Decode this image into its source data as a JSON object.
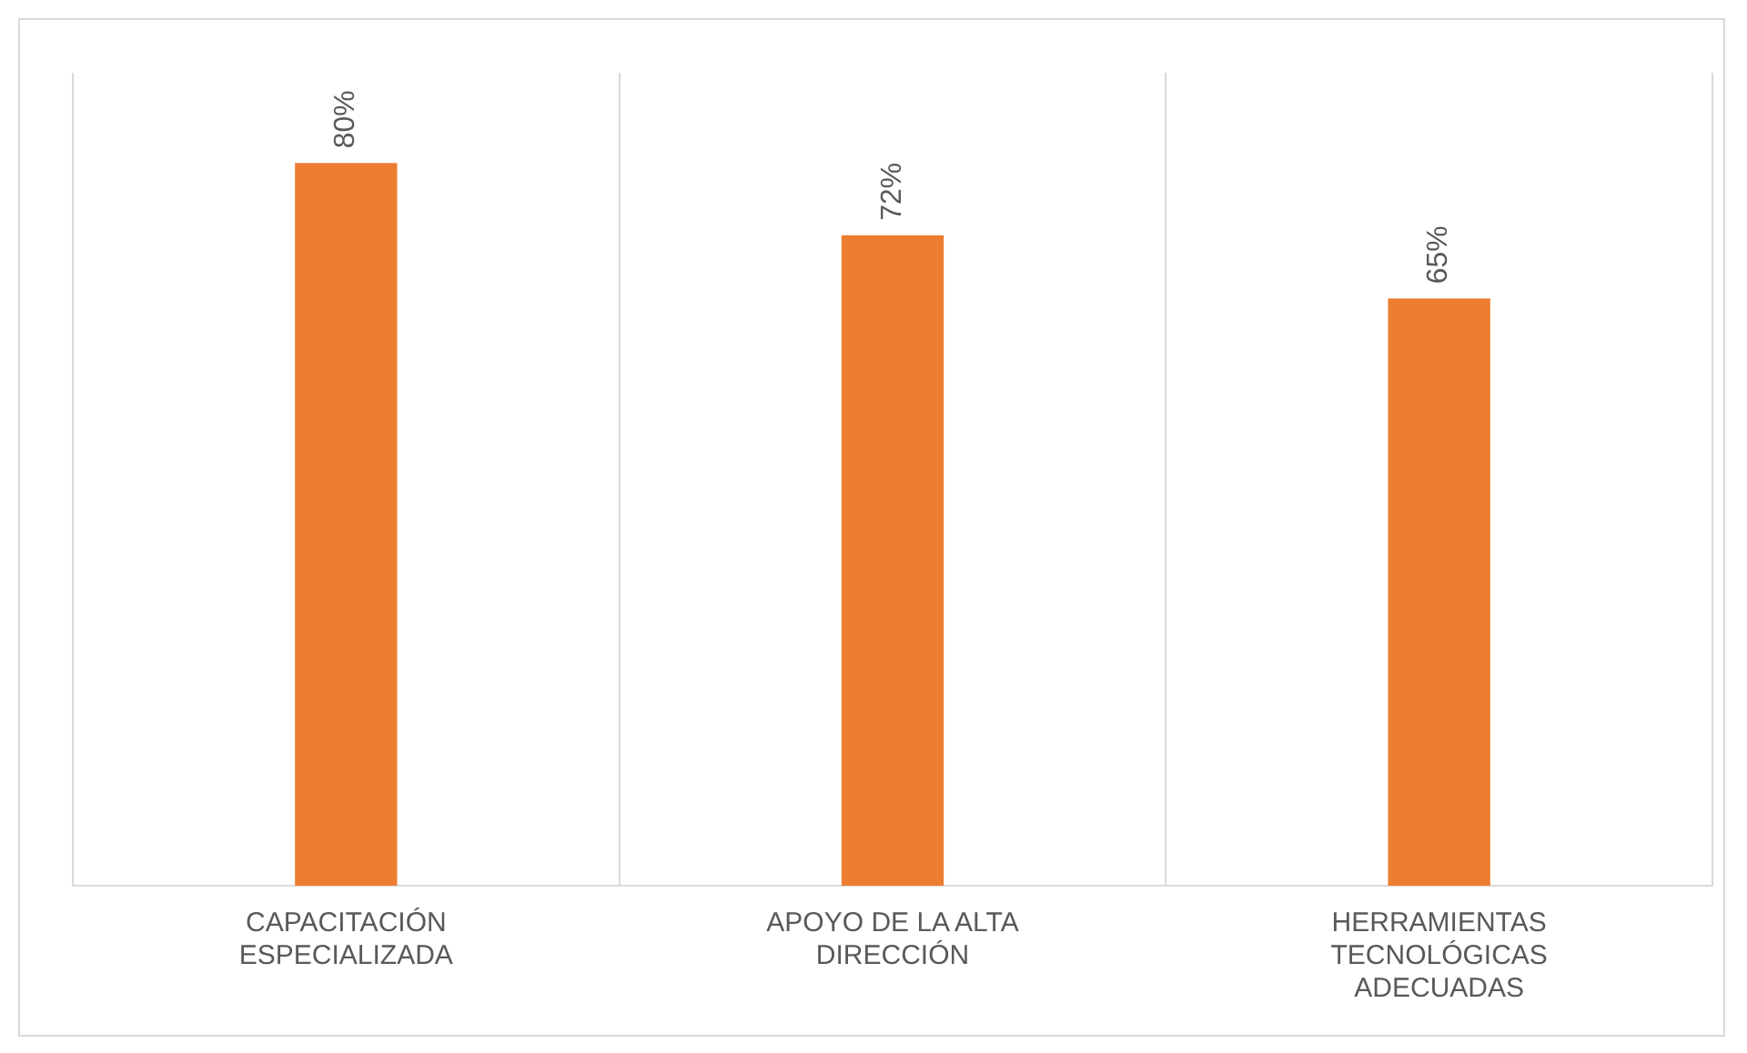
{
  "chart_data": {
    "type": "bar",
    "categories": [
      "CAPACITACIÓN ESPECIALIZADA",
      "APOYO DE LA ALTA DIRECCIÓN",
      "HERRAMIENTAS TECNOLÓGICAS ADECUADAS"
    ],
    "values": [
      80,
      72,
      65
    ],
    "color": "#ed7d31",
    "value_labels": [
      "80%",
      "72%",
      "65%"
    ],
    "ylim": [
      0,
      90
    ],
    "tick_labels": "x",
    "grid": "x",
    "legend": false
  }
}
